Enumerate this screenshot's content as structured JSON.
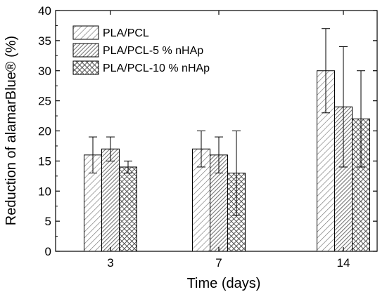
{
  "chart_data": {
    "type": "bar",
    "title": "",
    "xlabel": "Time (days)",
    "ylabel": "Reduction of alamarBlue® (%)",
    "categories": [
      "3",
      "7",
      "14"
    ],
    "ylim": [
      0,
      40
    ],
    "yticks": [
      0,
      5,
      10,
      15,
      20,
      25,
      30,
      35,
      40
    ],
    "legend_position": "top-left",
    "grid": false,
    "series": [
      {
        "name": "PLA/PCL",
        "pattern": "light diagonal hatch",
        "values": [
          16,
          17,
          30
        ],
        "error_low": [
          13,
          14,
          23
        ],
        "error_high": [
          19,
          20,
          37
        ]
      },
      {
        "name": "PLA/PCL-5 % nHAp",
        "pattern": "dense diagonal hatch",
        "values": [
          17,
          16,
          24
        ],
        "error_low": [
          15,
          13,
          14
        ],
        "error_high": [
          19,
          19,
          34
        ]
      },
      {
        "name": "PLA/PCL-10 % nHAp",
        "pattern": "crosshatch",
        "values": [
          14,
          13,
          22
        ],
        "error_low": [
          13,
          6,
          14
        ],
        "error_high": [
          15,
          20,
          30
        ]
      }
    ]
  }
}
